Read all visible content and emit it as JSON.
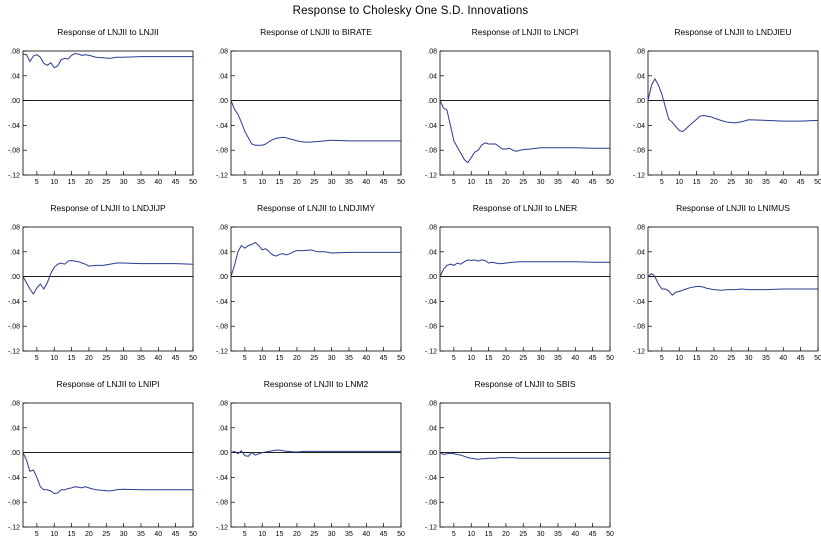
{
  "title": "Response to Cholesky One S.D. Innovations",
  "chart_data": {
    "type": "line",
    "shared_axes": {
      "xlim": [
        1,
        50
      ],
      "x_ticks": [
        5,
        10,
        15,
        20,
        25,
        30,
        35,
        40,
        45,
        50
      ],
      "ylim": [
        -0.12,
        0.08
      ],
      "y_ticks": [
        0.08,
        0.04,
        0.0,
        -0.04,
        -0.08,
        -0.12
      ],
      "y_tick_labels": [
        ".08",
        ".04",
        ".00",
        "-.04",
        "-.08",
        "-.12"
      ],
      "zero_line": true,
      "grid": false
    },
    "line_color": "#2a3b8f",
    "panels": [
      {
        "title": "Response of LNJII to LNJII",
        "series": [
          {
            "x": [
              1,
              2,
              3,
              4,
              5,
              6,
              7,
              8,
              9,
              10,
              11,
              12,
              13,
              14,
              15,
              16,
              17,
              18,
              19,
              20,
              22,
              24,
              26,
              28,
              30,
              35,
              40,
              45,
              50
            ],
            "y": [
              0.075,
              0.074,
              0.063,
              0.072,
              0.074,
              0.07,
              0.06,
              0.057,
              0.061,
              0.053,
              0.056,
              0.066,
              0.068,
              0.067,
              0.073,
              0.076,
              0.075,
              0.073,
              0.074,
              0.073,
              0.07,
              0.069,
              0.068,
              0.07,
              0.07,
              0.071,
              0.071,
              0.071,
              0.071
            ]
          }
        ]
      },
      {
        "title": "Response of LNJII to BIRATE",
        "series": [
          {
            "x": [
              1,
              2,
              3,
              4,
              5,
              6,
              7,
              8,
              9,
              10,
              11,
              12,
              13,
              14,
              15,
              16,
              17,
              18,
              19,
              20,
              22,
              24,
              26,
              28,
              30,
              35,
              40,
              45,
              50
            ],
            "y": [
              0.0,
              -0.014,
              -0.022,
              -0.035,
              -0.05,
              -0.06,
              -0.07,
              -0.072,
              -0.072,
              -0.072,
              -0.07,
              -0.066,
              -0.063,
              -0.061,
              -0.06,
              -0.059,
              -0.06,
              -0.062,
              -0.063,
              -0.065,
              -0.067,
              -0.067,
              -0.066,
              -0.065,
              -0.064,
              -0.065,
              -0.065,
              -0.065,
              -0.065
            ]
          }
        ]
      },
      {
        "title": "Response of LNJII to LNCPI",
        "series": [
          {
            "x": [
              1,
              2,
              3,
              4,
              5,
              6,
              7,
              8,
              9,
              10,
              11,
              12,
              13,
              14,
              15,
              16,
              17,
              18,
              19,
              20,
              21,
              22,
              23,
              24,
              25,
              27,
              30,
              35,
              40,
              45,
              50
            ],
            "y": [
              0.0,
              -0.012,
              -0.015,
              -0.04,
              -0.065,
              -0.075,
              -0.085,
              -0.095,
              -0.1,
              -0.092,
              -0.083,
              -0.08,
              -0.072,
              -0.068,
              -0.07,
              -0.07,
              -0.07,
              -0.074,
              -0.078,
              -0.078,
              -0.077,
              -0.08,
              -0.082,
              -0.08,
              -0.079,
              -0.078,
              -0.076,
              -0.076,
              -0.076,
              -0.077,
              -0.077
            ]
          }
        ]
      },
      {
        "title": "Response of LNJII to LNDJIEU",
        "series": [
          {
            "x": [
              1,
              2,
              3,
              4,
              5,
              6,
              7,
              8,
              9,
              10,
              11,
              12,
              13,
              14,
              15,
              16,
              17,
              18,
              19,
              20,
              22,
              24,
              26,
              28,
              30,
              35,
              40,
              45,
              50
            ],
            "y": [
              0.0,
              0.025,
              0.035,
              0.025,
              0.01,
              -0.01,
              -0.03,
              -0.035,
              -0.042,
              -0.048,
              -0.05,
              -0.045,
              -0.04,
              -0.035,
              -0.03,
              -0.025,
              -0.024,
              -0.025,
              -0.026,
              -0.028,
              -0.032,
              -0.035,
              -0.036,
              -0.034,
              -0.031,
              -0.032,
              -0.033,
              -0.033,
              -0.032
            ]
          }
        ]
      },
      {
        "title": "Response of LNJII to LNDJIJP",
        "series": [
          {
            "x": [
              1,
              2,
              3,
              4,
              5,
              6,
              7,
              8,
              9,
              10,
              11,
              12,
              13,
              14,
              15,
              16,
              17,
              18,
              19,
              20,
              22,
              24,
              26,
              28,
              30,
              35,
              40,
              45,
              50
            ],
            "y": [
              0.0,
              -0.01,
              -0.02,
              -0.028,
              -0.018,
              -0.012,
              -0.02,
              -0.01,
              0.005,
              0.015,
              0.02,
              0.022,
              0.02,
              0.025,
              0.026,
              0.025,
              0.024,
              0.022,
              0.02,
              0.017,
              0.018,
              0.018,
              0.02,
              0.022,
              0.022,
              0.021,
              0.021,
              0.021,
              0.02
            ]
          }
        ]
      },
      {
        "title": "Response of LNJII to LNDJIMY",
        "series": [
          {
            "x": [
              1,
              2,
              3,
              4,
              5,
              6,
              7,
              8,
              9,
              10,
              11,
              12,
              13,
              14,
              15,
              16,
              17,
              18,
              19,
              20,
              22,
              24,
              26,
              28,
              30,
              35,
              40,
              45,
              50
            ],
            "y": [
              0.0,
              0.018,
              0.04,
              0.05,
              0.046,
              0.05,
              0.052,
              0.055,
              0.05,
              0.043,
              0.045,
              0.04,
              0.035,
              0.033,
              0.036,
              0.037,
              0.035,
              0.037,
              0.04,
              0.042,
              0.042,
              0.043,
              0.04,
              0.04,
              0.038,
              0.039,
              0.039,
              0.039,
              0.039
            ]
          }
        ]
      },
      {
        "title": "Response of LNJII to LNER",
        "series": [
          {
            "x": [
              1,
              2,
              3,
              4,
              5,
              6,
              7,
              8,
              9,
              10,
              11,
              12,
              13,
              14,
              15,
              16,
              17,
              18,
              19,
              20,
              22,
              24,
              26,
              28,
              30,
              35,
              40,
              45,
              50
            ],
            "y": [
              0.0,
              0.012,
              0.018,
              0.02,
              0.018,
              0.022,
              0.02,
              0.024,
              0.027,
              0.026,
              0.027,
              0.025,
              0.027,
              0.026,
              0.022,
              0.023,
              0.022,
              0.021,
              0.021,
              0.022,
              0.023,
              0.024,
              0.024,
              0.024,
              0.024,
              0.024,
              0.024,
              0.023,
              0.023
            ]
          }
        ]
      },
      {
        "title": "Response of LNJII to LNIMUS",
        "series": [
          {
            "x": [
              1,
              2,
              3,
              4,
              5,
              6,
              7,
              8,
              9,
              10,
              11,
              12,
              13,
              14,
              15,
              16,
              17,
              18,
              19,
              20,
              22,
              24,
              26,
              28,
              30,
              35,
              40,
              45,
              50
            ],
            "y": [
              0.0,
              0.005,
              0.0,
              -0.012,
              -0.02,
              -0.02,
              -0.023,
              -0.03,
              -0.025,
              -0.024,
              -0.022,
              -0.02,
              -0.018,
              -0.017,
              -0.016,
              -0.016,
              -0.017,
              -0.019,
              -0.02,
              -0.021,
              -0.022,
              -0.021,
              -0.021,
              -0.02,
              -0.021,
              -0.021,
              -0.02,
              -0.02,
              -0.02
            ]
          }
        ]
      },
      {
        "title": "Response of LNJII to LNIPI",
        "series": [
          {
            "x": [
              1,
              2,
              3,
              4,
              5,
              6,
              7,
              8,
              9,
              10,
              11,
              12,
              13,
              14,
              15,
              16,
              17,
              18,
              19,
              20,
              22,
              24,
              26,
              28,
              30,
              35,
              40,
              45,
              50
            ],
            "y": [
              0.0,
              -0.012,
              -0.03,
              -0.028,
              -0.04,
              -0.055,
              -0.06,
              -0.06,
              -0.062,
              -0.066,
              -0.065,
              -0.06,
              -0.06,
              -0.058,
              -0.057,
              -0.055,
              -0.056,
              -0.057,
              -0.055,
              -0.057,
              -0.06,
              -0.061,
              -0.062,
              -0.06,
              -0.059,
              -0.06,
              -0.06,
              -0.06,
              -0.06
            ]
          }
        ]
      },
      {
        "title": "Response of LNJII to LNM2",
        "series": [
          {
            "x": [
              1,
              2,
              3,
              4,
              5,
              6,
              7,
              8,
              9,
              10,
              11,
              12,
              13,
              14,
              15,
              16,
              17,
              18,
              19,
              20,
              22,
              24,
              26,
              28,
              30,
              35,
              40,
              45,
              50
            ],
            "y": [
              0.0,
              0.002,
              -0.002,
              0.003,
              -0.005,
              -0.006,
              0.0,
              -0.004,
              -0.002,
              0.0,
              0.001,
              0.002,
              0.003,
              0.004,
              0.004,
              0.003,
              0.002,
              0.002,
              0.001,
              0.001,
              0.002,
              0.002,
              0.002,
              0.002,
              0.002,
              0.002,
              0.002,
              0.002,
              0.002
            ]
          }
        ]
      },
      {
        "title": "Response of LNJII to SBIS",
        "series": [
          {
            "x": [
              1,
              2,
              3,
              4,
              5,
              6,
              7,
              8,
              9,
              10,
              11,
              12,
              13,
              14,
              15,
              16,
              17,
              18,
              19,
              20,
              22,
              24,
              26,
              28,
              30,
              35,
              40,
              45,
              50
            ],
            "y": [
              0.0,
              -0.003,
              -0.002,
              -0.001,
              -0.002,
              -0.003,
              -0.004,
              -0.006,
              -0.008,
              -0.009,
              -0.01,
              -0.011,
              -0.01,
              -0.01,
              -0.009,
              -0.009,
              -0.009,
              -0.008,
              -0.008,
              -0.008,
              -0.008,
              -0.009,
              -0.009,
              -0.009,
              -0.009,
              -0.009,
              -0.009,
              -0.009,
              -0.009
            ]
          }
        ]
      }
    ]
  }
}
